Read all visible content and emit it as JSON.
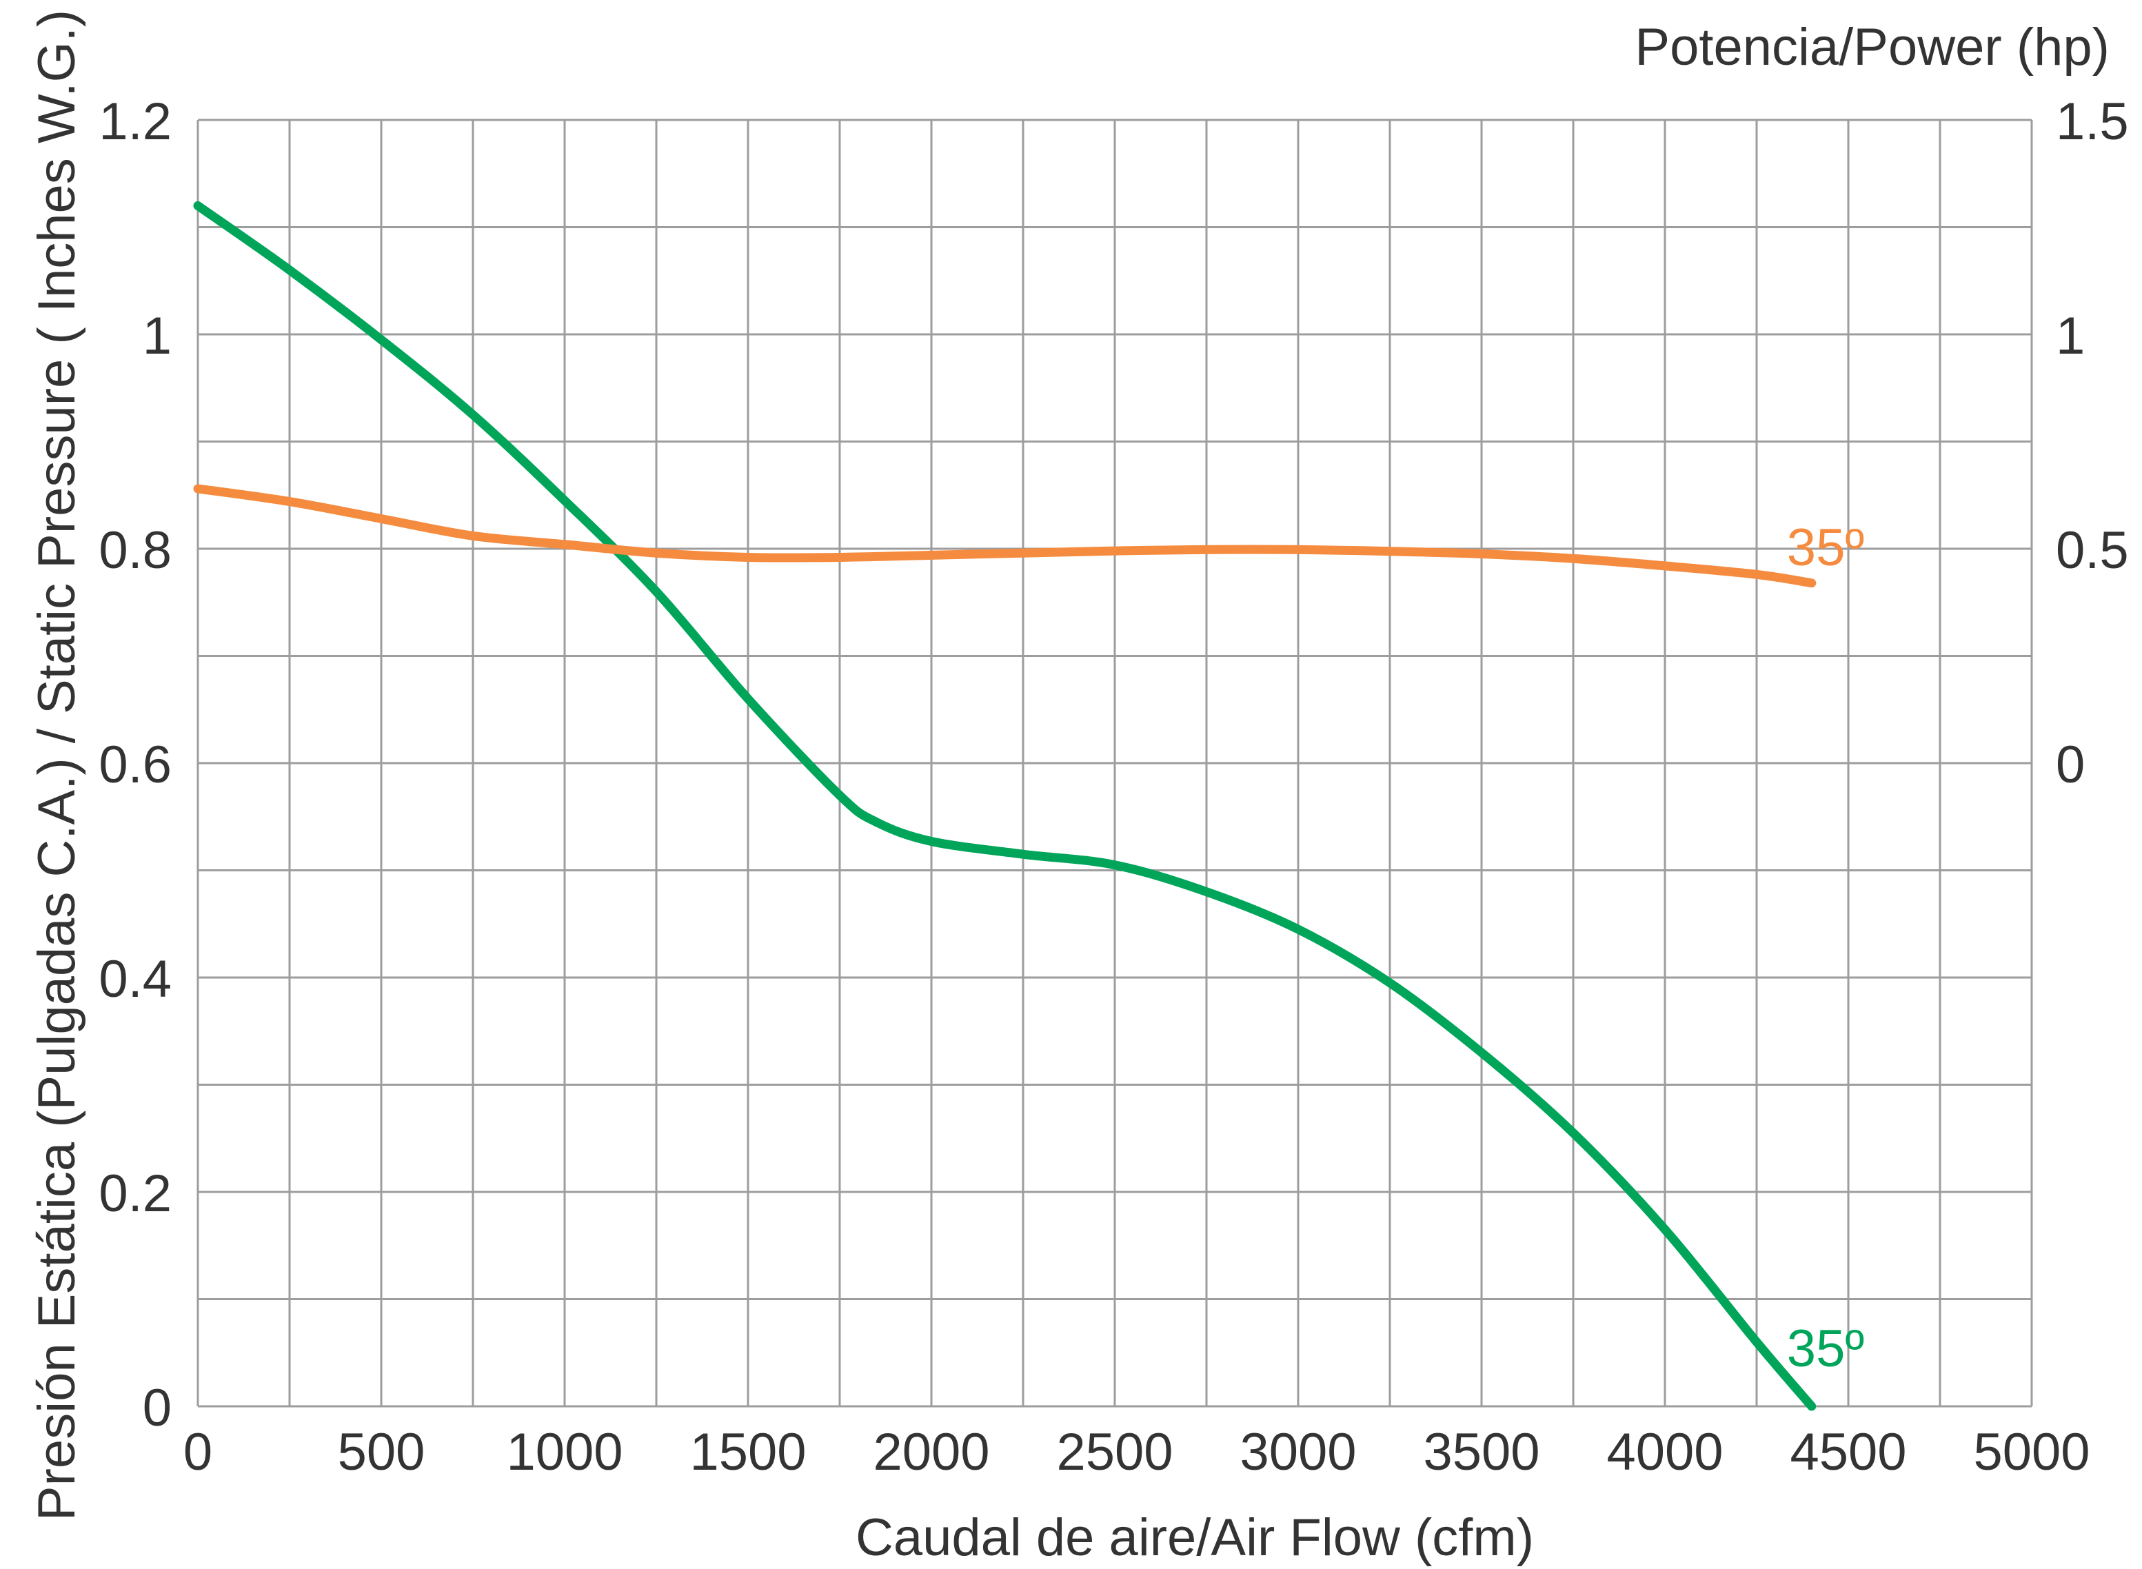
{
  "chart_data": {
    "type": "line",
    "xlabel": "Caudal de aire/Air Flow (cfm)",
    "ylabel": "Presión Estática (Pulgadas C.A.) / Static Pressure ( Inches W.G.)",
    "y2label": "Potencia/Power (hp)",
    "xlim": [
      0,
      5000
    ],
    "ylim": [
      0,
      1.2
    ],
    "y2lim": [
      -1.5,
      1.5
    ],
    "x_ticks": [
      0,
      500,
      1000,
      1500,
      2000,
      2500,
      3000,
      3500,
      4000,
      4500,
      5000
    ],
    "y_ticks": [
      0,
      0.2,
      0.4,
      0.6,
      0.8,
      1,
      1.2
    ],
    "y2_ticks": [
      0,
      0.5,
      1,
      1.5
    ],
    "grid": true,
    "grid_x_step": 250,
    "grid_y_step": 0.1,
    "series": [
      {
        "key": "pressure",
        "axis": "left",
        "label": "35º",
        "color": "#00a55a",
        "x": [
          0,
          250,
          500,
          750,
          1000,
          1250,
          1500,
          1750,
          1850,
          2000,
          2250,
          2500,
          2750,
          3000,
          3250,
          3500,
          3750,
          4000,
          4250,
          4400
        ],
        "y": [
          1.12,
          1.06,
          0.995,
          0.925,
          0.845,
          0.76,
          0.66,
          0.57,
          0.545,
          0.527,
          0.515,
          0.505,
          0.48,
          0.445,
          0.395,
          0.33,
          0.255,
          0.165,
          0.06,
          0.0
        ]
      },
      {
        "key": "power",
        "axis": "right",
        "label": "35º",
        "color": "#f58b3f",
        "x": [
          0,
          250,
          500,
          750,
          1000,
          1250,
          1500,
          1750,
          2000,
          2250,
          2500,
          2750,
          3000,
          3250,
          3500,
          3750,
          4000,
          4250,
          4400
        ],
        "y": [
          0.64,
          0.61,
          0.57,
          0.53,
          0.51,
          0.49,
          0.48,
          0.48,
          0.485,
          0.49,
          0.495,
          0.498,
          0.498,
          0.494,
          0.488,
          0.477,
          0.46,
          0.44,
          0.42
        ]
      }
    ]
  }
}
